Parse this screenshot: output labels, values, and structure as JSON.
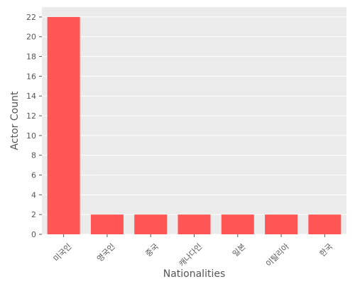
{
  "chart_data": {
    "type": "bar",
    "title": "",
    "xlabel": "Nationalities",
    "ylabel": "Actor Count",
    "categories": [
      "미국인",
      "영국인",
      "중국",
      "캐나다인",
      "일본",
      "이탈리아",
      "한국"
    ],
    "values": [
      22,
      2,
      2,
      2,
      2,
      2,
      2
    ],
    "ylim": [
      0,
      23
    ],
    "yticks": [
      0,
      2,
      4,
      6,
      8,
      10,
      12,
      14,
      16,
      18,
      20,
      22
    ],
    "grid": true,
    "bar_color": "#ff5555",
    "plot_background": "#ebebeb",
    "grid_color": "#ffffff"
  }
}
